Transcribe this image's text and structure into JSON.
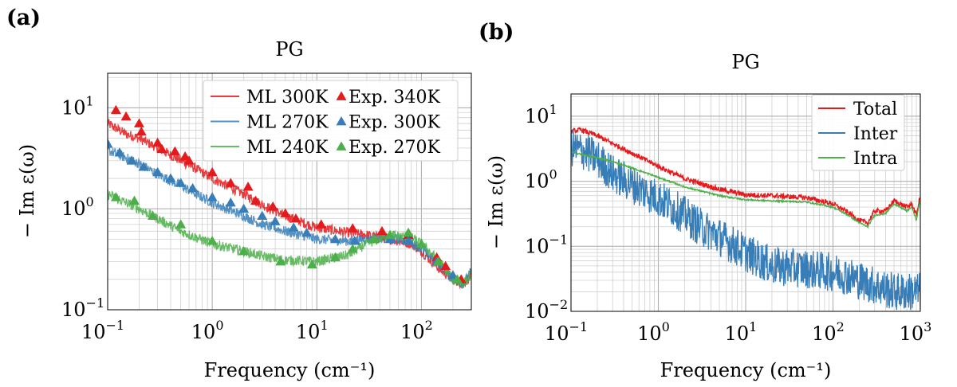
{
  "panels": [
    {
      "label": "(a)",
      "chart_data": {
        "type": "line",
        "title": "PG",
        "xlabel": "Frequency (cm⁻¹)",
        "ylabel": "− Im ε(ω)",
        "xscale": "log",
        "yscale": "log",
        "xlim": [
          0.1,
          300
        ],
        "ylim": [
          0.1,
          22
        ],
        "xticks": [
          {
            "v": 0.1,
            "b": "10",
            "e": "−1"
          },
          {
            "v": 1,
            "b": "10",
            "e": "0"
          },
          {
            "v": 10,
            "b": "10",
            "e": "1"
          },
          {
            "v": 100,
            "b": "10",
            "e": "2"
          }
        ],
        "yticks": [
          {
            "v": 0.1,
            "b": "10",
            "e": "−1"
          },
          {
            "v": 1,
            "b": "10",
            "e": "0"
          },
          {
            "v": 10,
            "b": "10",
            "e": "1"
          }
        ],
        "grid": true,
        "legend_position": "top-right",
        "series": [
          {
            "name": "ML 300K",
            "kind": "line",
            "color": "#e41a1c",
            "noise": 0.05,
            "points": [
              [
                0.1,
                7.0
              ],
              [
                0.15,
                5.5
              ],
              [
                0.2,
                5.0
              ],
              [
                0.3,
                4.0
              ],
              [
                0.5,
                3.0
              ],
              [
                0.7,
                2.5
              ],
              [
                1,
                2.0
              ],
              [
                2,
                1.4
              ],
              [
                3,
                1.1
              ],
              [
                5,
                0.85
              ],
              [
                10,
                0.65
              ],
              [
                20,
                0.58
              ],
              [
                30,
                0.55
              ],
              [
                50,
                0.5
              ],
              [
                80,
                0.45
              ],
              [
                100,
                0.38
              ],
              [
                150,
                0.25
              ],
              [
                200,
                0.2
              ],
              [
                250,
                0.18
              ],
              [
                300,
                0.22
              ]
            ]
          },
          {
            "name": "ML 270K",
            "kind": "line",
            "color": "#377eb8",
            "noise": 0.05,
            "points": [
              [
                0.1,
                3.8
              ],
              [
                0.15,
                3.2
              ],
              [
                0.2,
                2.8
              ],
              [
                0.3,
                2.2
              ],
              [
                0.5,
                1.7
              ],
              [
                0.7,
                1.4
              ],
              [
                1,
                1.15
              ],
              [
                2,
                0.85
              ],
              [
                3,
                0.7
              ],
              [
                5,
                0.6
              ],
              [
                10,
                0.5
              ],
              [
                20,
                0.48
              ],
              [
                30,
                0.5
              ],
              [
                50,
                0.52
              ],
              [
                80,
                0.47
              ],
              [
                100,
                0.4
              ],
              [
                150,
                0.28
              ],
              [
                200,
                0.2
              ],
              [
                250,
                0.18
              ],
              [
                300,
                0.24
              ]
            ]
          },
          {
            "name": "ML 240K",
            "kind": "line",
            "color": "#4daf4a",
            "noise": 0.05,
            "points": [
              [
                0.1,
                1.4
              ],
              [
                0.15,
                1.15
              ],
              [
                0.2,
                1.0
              ],
              [
                0.3,
                0.8
              ],
              [
                0.5,
                0.6
              ],
              [
                0.7,
                0.52
              ],
              [
                1,
                0.45
              ],
              [
                2,
                0.38
              ],
              [
                3,
                0.34
              ],
              [
                5,
                0.31
              ],
              [
                10,
                0.3
              ],
              [
                20,
                0.35
              ],
              [
                30,
                0.45
              ],
              [
                50,
                0.55
              ],
              [
                80,
                0.52
              ],
              [
                100,
                0.45
              ],
              [
                150,
                0.3
              ],
              [
                200,
                0.2
              ],
              [
                250,
                0.18
              ],
              [
                300,
                0.22
              ]
            ]
          },
          {
            "name": "Exp. 340K",
            "kind": "marker",
            "color": "#e41a1c",
            "points": [
              [
                0.12,
                9.5
              ],
              [
                0.15,
                8.2
              ],
              [
                0.2,
                7.0
              ],
              [
                0.21,
                5.8
              ],
              [
                0.3,
                4.5
              ],
              [
                0.33,
                3.9
              ],
              [
                0.44,
                3.7
              ],
              [
                0.55,
                3.3
              ],
              [
                0.6,
                3.0
              ],
              [
                1.0,
                2.3
              ],
              [
                1.5,
                1.8
              ],
              [
                2.2,
                1.65
              ],
              [
                2.6,
                1.2
              ],
              [
                3.8,
                1.05
              ],
              [
                5,
                0.9
              ],
              [
                6.3,
                0.8
              ],
              [
                11,
                0.7
              ],
              [
                22,
                0.64
              ],
              [
                42,
                0.6
              ],
              [
                75,
                0.55
              ],
              [
                140,
                0.33
              ],
              [
                170,
                0.27
              ],
              [
                240,
                0.2
              ]
            ]
          },
          {
            "name": "Exp. 300K",
            "kind": "marker",
            "color": "#377eb8",
            "points": [
              [
                0.1,
                4.4
              ],
              [
                0.13,
                3.6
              ],
              [
                0.17,
                3.0
              ],
              [
                0.22,
                2.6
              ],
              [
                0.3,
                2.3
              ],
              [
                0.4,
                2.0
              ],
              [
                0.5,
                1.8
              ],
              [
                0.65,
                1.6
              ],
              [
                1.0,
                1.3
              ],
              [
                1.5,
                1.15
              ],
              [
                2,
                1.0
              ],
              [
                3,
                0.85
              ],
              [
                4,
                0.75
              ],
              [
                6,
                0.65
              ],
              [
                8,
                0.58
              ],
              [
                15,
                0.5
              ],
              [
                23,
                0.48
              ],
              [
                35,
                0.5
              ],
              [
                50,
                0.5
              ],
              [
                75,
                0.48
              ],
              [
                140,
                0.3
              ],
              [
                200,
                0.22
              ]
            ]
          },
          {
            "name": "Exp. 270K",
            "kind": "marker",
            "color": "#4daf4a",
            "points": [
              [
                0.12,
                1.3
              ],
              [
                0.18,
                1.2
              ],
              [
                0.27,
                0.85
              ],
              [
                0.5,
                0.7
              ],
              [
                1.0,
                0.48
              ],
              [
                2.0,
                0.38
              ],
              [
                4.5,
                0.3
              ],
              [
                9,
                0.28
              ],
              [
                15,
                0.33
              ],
              [
                22,
                0.4
              ],
              [
                35,
                0.5
              ],
              [
                50,
                0.55
              ],
              [
                75,
                0.58
              ],
              [
                100,
                0.45
              ],
              [
                145,
                0.3
              ],
              [
                220,
                0.2
              ]
            ]
          }
        ]
      }
    },
    {
      "label": "(b)",
      "chart_data": {
        "type": "line",
        "title": "PG",
        "xlabel": "Frequency (cm⁻¹)",
        "ylabel": "− Im ε(ω)",
        "xscale": "log",
        "yscale": "log",
        "xlim": [
          0.1,
          1000
        ],
        "ylim": [
          0.01,
          22
        ],
        "xticks": [
          {
            "v": 0.1,
            "b": "10",
            "e": "−1"
          },
          {
            "v": 1,
            "b": "10",
            "e": "0"
          },
          {
            "v": 10,
            "b": "10",
            "e": "1"
          },
          {
            "v": 100,
            "b": "10",
            "e": "2"
          },
          {
            "v": 1000,
            "b": "10",
            "e": "3"
          }
        ],
        "yticks": [
          {
            "v": 0.01,
            "b": "10",
            "e": "−2"
          },
          {
            "v": 0.1,
            "b": "10",
            "e": "−1"
          },
          {
            "v": 1,
            "b": "10",
            "e": "0"
          },
          {
            "v": 10,
            "b": "10",
            "e": "1"
          }
        ],
        "grid": true,
        "legend_position": "top-right",
        "series": [
          {
            "name": "Total",
            "kind": "line",
            "color": "#e41a1c",
            "noise": 0.04,
            "points": [
              [
                0.1,
                5.8
              ],
              [
                0.13,
                6.2
              ],
              [
                0.2,
                5.0
              ],
              [
                0.3,
                3.8
              ],
              [
                0.5,
                2.7
              ],
              [
                1,
                1.7
              ],
              [
                2,
                1.1
              ],
              [
                5,
                0.75
              ],
              [
                10,
                0.62
              ],
              [
                20,
                0.6
              ],
              [
                50,
                0.56
              ],
              [
                100,
                0.45
              ],
              [
                150,
                0.33
              ],
              [
                200,
                0.25
              ],
              [
                250,
                0.23
              ],
              [
                300,
                0.35
              ],
              [
                400,
                0.35
              ],
              [
                500,
                0.5
              ],
              [
                700,
                0.4
              ],
              [
                800,
                0.45
              ],
              [
                900,
                0.3
              ],
              [
                1000,
                0.6
              ]
            ]
          },
          {
            "name": "Inter",
            "kind": "line",
            "color": "#377eb8",
            "noise": 0.3,
            "points": [
              [
                0.1,
                3.3
              ],
              [
                0.15,
                2.8
              ],
              [
                0.2,
                2.2
              ],
              [
                0.3,
                1.3
              ],
              [
                0.5,
                0.9
              ],
              [
                0.7,
                0.7
              ],
              [
                1,
                0.55
              ],
              [
                2,
                0.3
              ],
              [
                3,
                0.2
              ],
              [
                5,
                0.14
              ],
              [
                10,
                0.08
              ],
              [
                20,
                0.05
              ],
              [
                50,
                0.045
              ],
              [
                100,
                0.04
              ],
              [
                150,
                0.035
              ],
              [
                200,
                0.03
              ],
              [
                300,
                0.025
              ],
              [
                500,
                0.02
              ],
              [
                1000,
                0.02
              ]
            ]
          },
          {
            "name": "Intra",
            "kind": "line",
            "color": "#4daf4a",
            "noise": 0.012,
            "points": [
              [
                0.1,
                2.8
              ],
              [
                0.2,
                2.3
              ],
              [
                0.3,
                2.0
              ],
              [
                0.5,
                1.6
              ],
              [
                1,
                1.15
              ],
              [
                2,
                0.82
              ],
              [
                5,
                0.6
              ],
              [
                10,
                0.52
              ],
              [
                20,
                0.5
              ],
              [
                50,
                0.48
              ],
              [
                100,
                0.4
              ],
              [
                150,
                0.3
              ],
              [
                200,
                0.23
              ],
              [
                250,
                0.2
              ],
              [
                300,
                0.3
              ],
              [
                400,
                0.32
              ],
              [
                500,
                0.45
              ],
              [
                700,
                0.35
              ],
              [
                800,
                0.4
              ],
              [
                900,
                0.25
              ],
              [
                1000,
                0.55
              ]
            ]
          }
        ]
      }
    }
  ]
}
